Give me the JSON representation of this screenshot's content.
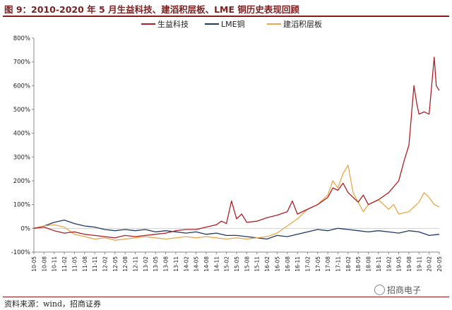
{
  "header": {
    "title": "图 9：2010-2020 年 5 月生益科技、建滔积层板、LME 铜历史表现回顾"
  },
  "footer": {
    "source": "资料来源：wind，招商证券",
    "watermark": "招商电子"
  },
  "colors": {
    "series_1": "#b01e23",
    "series_2": "#1f3864",
    "series_3": "#e8a84a",
    "title_rule": "#8b1a1a"
  },
  "chart_data": {
    "type": "line",
    "title": "",
    "xlabel": "",
    "ylabel": "",
    "ylim": [
      -100,
      800
    ],
    "yticks": [
      "-100%",
      "0%",
      "100%",
      "200%",
      "300%",
      "400%",
      "500%",
      "600%",
      "700%",
      "800%"
    ],
    "ytick_values": [
      -100,
      0,
      100,
      200,
      300,
      400,
      500,
      600,
      700,
      800
    ],
    "xticks": [
      "10-05",
      "10-08",
      "10-11",
      "11-02",
      "11-05",
      "11-08",
      "11-11",
      "12-02",
      "12-05",
      "12-08",
      "12-11",
      "13-02",
      "13-05",
      "13-08",
      "13-11",
      "14-02",
      "14-05",
      "14-08",
      "14-11",
      "15-02",
      "15-05",
      "15-08",
      "15-11",
      "16-02",
      "16-05",
      "16-08",
      "16-11",
      "17-02",
      "17-05",
      "17-08",
      "17-11",
      "18-02",
      "18-05",
      "18-08",
      "18-11",
      "19-02",
      "19-05",
      "19-08",
      "19-11",
      "20-02",
      "20-05"
    ],
    "legend_position": "top",
    "series": [
      {
        "name": "生益科技",
        "points": [
          [
            0,
            0
          ],
          [
            1,
            5
          ],
          [
            2,
            -10
          ],
          [
            3,
            -20
          ],
          [
            4,
            -15
          ],
          [
            5,
            -25
          ],
          [
            6,
            -30
          ],
          [
            7,
            -35
          ],
          [
            8,
            -40
          ],
          [
            9,
            -30
          ],
          [
            10,
            -35
          ],
          [
            11,
            -30
          ],
          [
            12,
            -25
          ],
          [
            13,
            -20
          ],
          [
            14,
            -10
          ],
          [
            15,
            -5
          ],
          [
            16,
            -5
          ],
          [
            17,
            5
          ],
          [
            18,
            15
          ],
          [
            18.5,
            30
          ],
          [
            19,
            20
          ],
          [
            19.5,
            115
          ],
          [
            20,
            40
          ],
          [
            20.5,
            60
          ],
          [
            21,
            25
          ],
          [
            22,
            30
          ],
          [
            23,
            45
          ],
          [
            24,
            55
          ],
          [
            25,
            70
          ],
          [
            25.5,
            115
          ],
          [
            26,
            60
          ],
          [
            27,
            80
          ],
          [
            28,
            100
          ],
          [
            29,
            130
          ],
          [
            29.5,
            170
          ],
          [
            30,
            160
          ],
          [
            30.5,
            190
          ],
          [
            31,
            150
          ],
          [
            32,
            110
          ],
          [
            32.5,
            140
          ],
          [
            33,
            100
          ],
          [
            34,
            120
          ],
          [
            35,
            150
          ],
          [
            36,
            200
          ],
          [
            36.5,
            280
          ],
          [
            37,
            350
          ],
          [
            37.5,
            600
          ],
          [
            37.8,
            520
          ],
          [
            38,
            480
          ],
          [
            38.5,
            490
          ],
          [
            39,
            480
          ],
          [
            39.5,
            720
          ],
          [
            39.7,
            600
          ],
          [
            40,
            580
          ]
        ]
      },
      {
        "name": "LME铜",
        "points": [
          [
            0,
            0
          ],
          [
            1,
            10
          ],
          [
            2,
            25
          ],
          [
            3,
            35
          ],
          [
            4,
            20
          ],
          [
            5,
            10
          ],
          [
            6,
            5
          ],
          [
            7,
            -5
          ],
          [
            8,
            -10
          ],
          [
            9,
            -5
          ],
          [
            10,
            -10
          ],
          [
            11,
            -5
          ],
          [
            12,
            -15
          ],
          [
            13,
            -10
          ],
          [
            14,
            -15
          ],
          [
            15,
            -20
          ],
          [
            16,
            -15
          ],
          [
            17,
            -25
          ],
          [
            18,
            -20
          ],
          [
            19,
            -30
          ],
          [
            20,
            -30
          ],
          [
            21,
            -35
          ],
          [
            22,
            -40
          ],
          [
            23,
            -45
          ],
          [
            24,
            -30
          ],
          [
            25,
            -35
          ],
          [
            26,
            -25
          ],
          [
            27,
            -15
          ],
          [
            28,
            -5
          ],
          [
            29,
            -10
          ],
          [
            30,
            0
          ],
          [
            31,
            -5
          ],
          [
            32,
            -10
          ],
          [
            33,
            -15
          ],
          [
            34,
            -10
          ],
          [
            35,
            -15
          ],
          [
            36,
            -20
          ],
          [
            37,
            -10
          ],
          [
            38,
            -15
          ],
          [
            39,
            -30
          ],
          [
            40,
            -25
          ]
        ]
      },
      {
        "name": "建滔积层板",
        "points": [
          [
            0,
            0
          ],
          [
            1,
            10
          ],
          [
            2,
            15
          ],
          [
            3,
            5
          ],
          [
            4,
            -25
          ],
          [
            5,
            -35
          ],
          [
            6,
            -45
          ],
          [
            7,
            -40
          ],
          [
            8,
            -50
          ],
          [
            9,
            -45
          ],
          [
            10,
            -40
          ],
          [
            11,
            -35
          ],
          [
            12,
            -40
          ],
          [
            13,
            -45
          ],
          [
            14,
            -40
          ],
          [
            15,
            -35
          ],
          [
            16,
            -40
          ],
          [
            17,
            -35
          ],
          [
            18,
            -40
          ],
          [
            19,
            -45
          ],
          [
            20,
            -40
          ],
          [
            21,
            -45
          ],
          [
            22,
            -40
          ],
          [
            23,
            -35
          ],
          [
            24,
            -20
          ],
          [
            25,
            10
          ],
          [
            26,
            40
          ],
          [
            27,
            80
          ],
          [
            28,
            100
          ],
          [
            29,
            140
          ],
          [
            29.5,
            200
          ],
          [
            30,
            170
          ],
          [
            30.5,
            230
          ],
          [
            31,
            265
          ],
          [
            31.5,
            150
          ],
          [
            32,
            110
          ],
          [
            32.5,
            70
          ],
          [
            33,
            100
          ],
          [
            34,
            120
          ],
          [
            35,
            80
          ],
          [
            35.5,
            100
          ],
          [
            36,
            60
          ],
          [
            37,
            70
          ],
          [
            37.5,
            90
          ],
          [
            38,
            110
          ],
          [
            38.5,
            150
          ],
          [
            39,
            130
          ],
          [
            39.5,
            100
          ],
          [
            40,
            90
          ]
        ]
      }
    ]
  }
}
